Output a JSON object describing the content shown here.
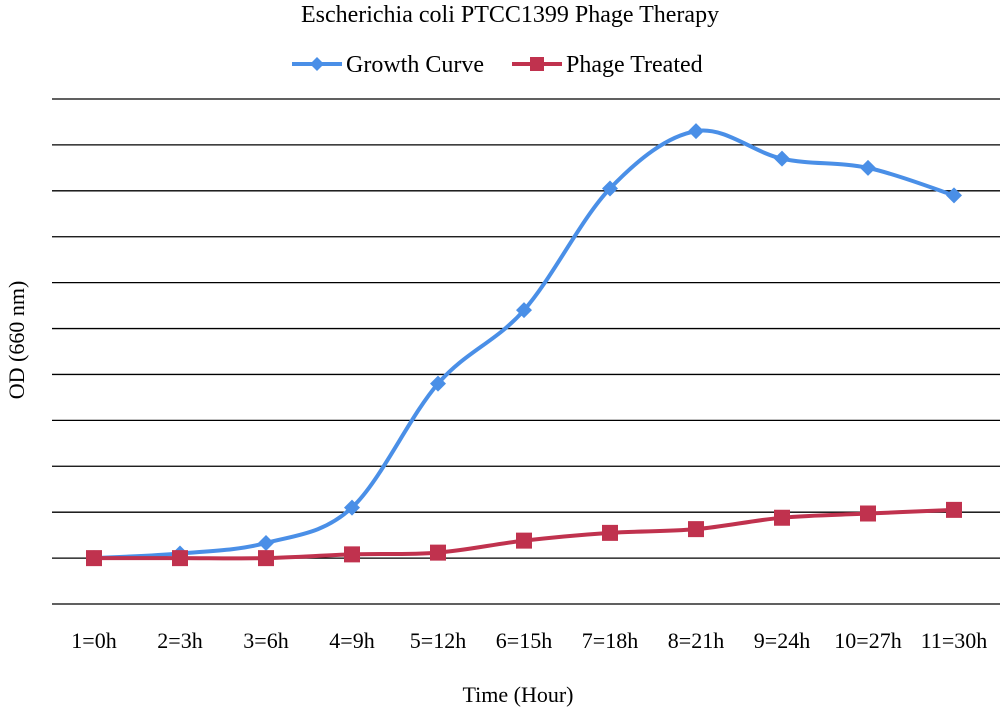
{
  "chart_data": {
    "type": "line",
    "title": "Escherichia coli PTCC1399 Phage Therapy",
    "xlabel": "Time (Hour)",
    "ylabel": "OD (660 nm)",
    "categories": [
      "1=0h",
      "2=3h",
      "3=6h",
      "4=9h",
      "5=12h",
      "6=15h",
      "7=18h",
      "8=21h",
      "9=24h",
      "10=27h",
      "11=30h"
    ],
    "ylim": [
      0,
      11
    ],
    "grid": true,
    "legend": "top-center",
    "series": [
      {
        "name": "Growth Curve",
        "color": "#4a8fe7",
        "marker": "diamond",
        "values": [
          1.0,
          1.1,
          1.33,
          2.1,
          4.8,
          6.4,
          9.05,
          10.3,
          9.7,
          9.5,
          8.9
        ]
      },
      {
        "name": "Phage Treated",
        "color": "#c0324e",
        "marker": "square",
        "values": [
          1.0,
          1.0,
          1.0,
          1.08,
          1.12,
          1.38,
          1.55,
          1.63,
          1.88,
          1.97,
          2.05
        ]
      }
    ]
  }
}
